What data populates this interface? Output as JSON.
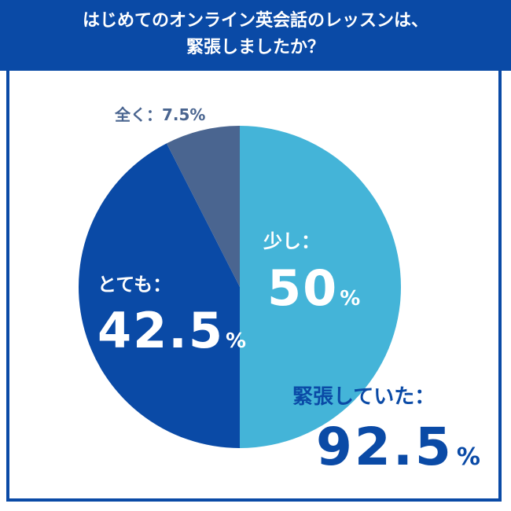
{
  "header": {
    "line1": "はじめてのオンライン英会話のレッスンは、",
    "line2": "緊張しましたか？"
  },
  "labels": {
    "zen": "全く：7.5%",
    "sukoshi_name": "少し：",
    "sukoshi_value": "50",
    "totemo_name": "とても：",
    "totemo_value": "42.5",
    "total_name": "緊張していた：",
    "total_value": "92.5",
    "percent": "%"
  },
  "colors": {
    "header": "#0a4aa6",
    "sukoshi": "#44b4d8",
    "totemo": "#0a4aa6",
    "zen": "#4a6590"
  },
  "chart_data": {
    "type": "pie",
    "title": "はじめてのオンライン英会話のレッスンは、緊張しましたか？",
    "slices": [
      {
        "label": "少し",
        "value": 50,
        "color": "#44b4d8"
      },
      {
        "label": "とても",
        "value": 42.5,
        "color": "#0a4aa6"
      },
      {
        "label": "全く",
        "value": 7.5,
        "color": "#4a6590"
      }
    ],
    "annotations": [
      {
        "text": "緊張していた",
        "value": 92.5
      }
    ],
    "start_angle": "top",
    "direction": "clockwise"
  }
}
